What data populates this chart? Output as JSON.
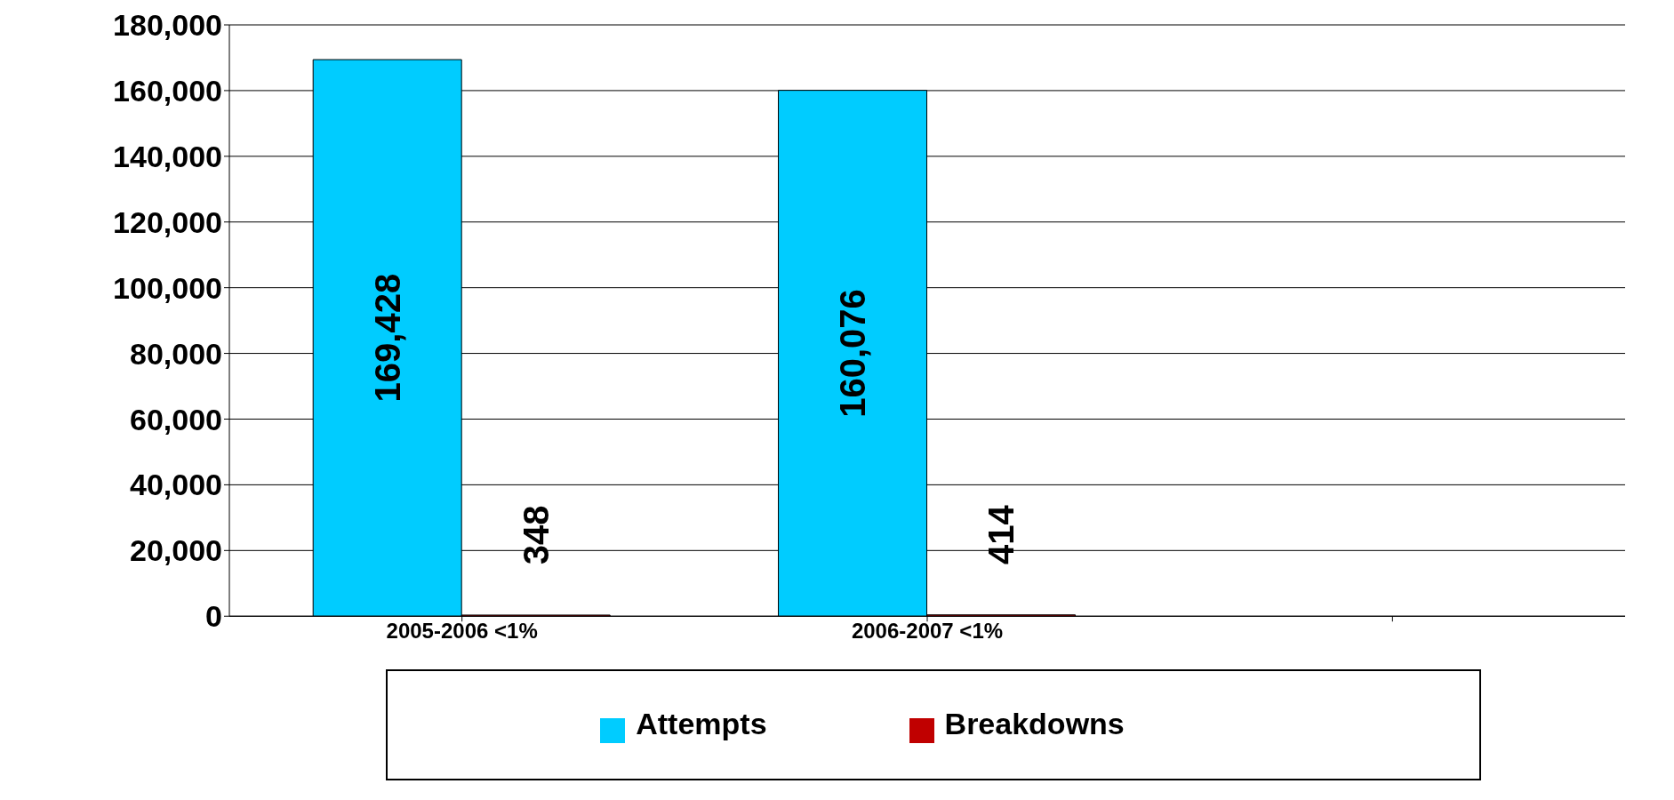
{
  "chart_data": {
    "type": "bar",
    "categories": [
      "2005-2006 <1%",
      "2006-2007 <1%",
      null
    ],
    "series": [
      {
        "name": "Attempts",
        "color": "#00ccff",
        "values": [
          169428,
          160076,
          null
        ],
        "value_labels": [
          "169,428",
          "160,076",
          null
        ]
      },
      {
        "name": "Breakdowns",
        "color": "#c00000",
        "values": [
          348,
          414,
          null
        ],
        "value_labels": [
          "348",
          "414",
          null
        ]
      }
    ],
    "ylim": [
      0,
      180000
    ],
    "yticks": [
      {
        "value": 0,
        "label": "0"
      },
      {
        "value": 20000,
        "label": "20,000"
      },
      {
        "value": 40000,
        "label": "40,000"
      },
      {
        "value": 60000,
        "label": "60,000"
      },
      {
        "value": 80000,
        "label": "80,000"
      },
      {
        "value": 100000,
        "label": "100,000"
      },
      {
        "value": 120000,
        "label": "120,000"
      },
      {
        "value": 140000,
        "label": "140,000"
      },
      {
        "value": 160000,
        "label": "160,000"
      },
      {
        "value": 180000,
        "label": "180,000"
      }
    ],
    "grid": "y",
    "legend": "bottom"
  }
}
